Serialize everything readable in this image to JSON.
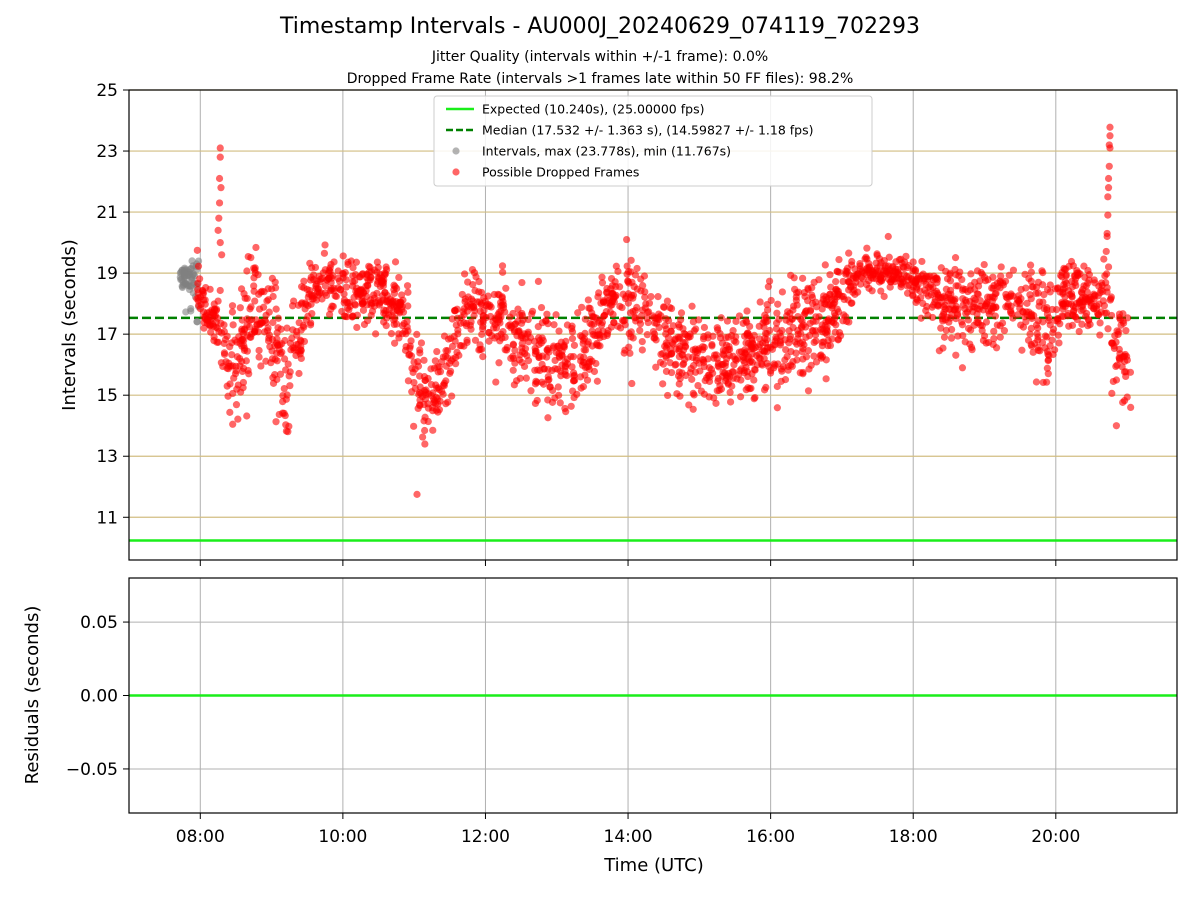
{
  "chart_data": [
    {
      "type": "scatter",
      "title": "Timestamp Intervals - AU000J_20240629_074119_702293",
      "subtitle_lines": [
        "Jitter Quality (intervals within +/-1 frame): 0.0%",
        "Dropped Frame Rate (intervals >1 frames late within 50 FF files): 98.2%"
      ],
      "xlabel": "",
      "ylabel": "Intervals (seconds)",
      "ylim": [
        9.6,
        25
      ],
      "yticks": [
        "11",
        "13",
        "15",
        "17",
        "19",
        "21",
        "23",
        "25"
      ],
      "ytick_values": [
        11,
        13,
        15,
        17,
        19,
        21,
        23,
        25
      ],
      "xlim_hours": [
        7.0,
        21.7
      ],
      "xtick_hours": [
        8,
        10,
        12,
        14,
        16,
        18,
        20
      ],
      "xticks": [
        "08:00",
        "10:00",
        "12:00",
        "14:00",
        "16:00",
        "18:00",
        "20:00"
      ],
      "grid": true,
      "legend_position": "top-center",
      "reference_lines": [
        {
          "name": "Expected (10.240s), (25.00000 fps)",
          "y": 10.24,
          "style": "solid",
          "color": "#1aee1a"
        },
        {
          "name": "Median (17.532 +/- 1.363 s), (14.59827 +/- 1.18 fps)",
          "y": 17.532,
          "style": "dashed",
          "color": "#008000"
        }
      ],
      "series": [
        {
          "name": "Intervals, max (23.778s), min (11.767s)",
          "color": "#808080",
          "time_range_hours": [
            7.72,
            7.98
          ],
          "y_range": [
            17.4,
            19.4
          ],
          "approx_count": 60
        },
        {
          "name": "Possible Dropped Frames",
          "color": "#ff0000",
          "approx_count": 2400,
          "profile_hours": [
            7.95,
            8.1,
            8.25,
            8.3,
            8.4,
            8.6,
            8.8,
            9.0,
            9.2,
            9.4,
            9.6,
            9.8,
            10.0,
            10.3,
            10.6,
            10.9,
            11.0,
            11.2,
            11.4,
            11.6,
            11.8,
            12.0,
            12.3,
            12.6,
            12.9,
            13.2,
            13.5,
            13.8,
            14.0,
            14.3,
            14.6,
            14.9,
            15.2,
            15.5,
            15.8,
            16.1,
            16.4,
            16.7,
            17.0,
            17.3,
            17.6,
            17.9,
            18.2,
            18.5,
            18.8,
            19.1,
            19.4,
            19.7,
            19.9,
            20.1,
            20.4,
            20.6,
            20.7,
            20.8,
            21.05
          ],
          "profile_median": [
            18.6,
            17.6,
            17.4,
            16.8,
            16.0,
            16.4,
            18.2,
            17.0,
            15.6,
            17.4,
            18.6,
            18.4,
            18.5,
            18.3,
            18.4,
            17.5,
            15.0,
            15.0,
            15.2,
            17.0,
            18.1,
            17.5,
            17.1,
            16.6,
            16.3,
            16.0,
            16.8,
            18.5,
            17.8,
            18.0,
            16.6,
            16.2,
            16.1,
            16.3,
            16.4,
            17.0,
            17.2,
            17.3,
            18.2,
            19.0,
            19.0,
            19.0,
            18.4,
            17.7,
            17.8,
            17.9,
            18.1,
            17.6,
            17.0,
            18.2,
            18.3,
            18.0,
            19.5,
            16.5,
            16.5
          ],
          "profile_spread": [
            0.6,
            0.5,
            0.6,
            1.4,
            1.2,
            1.4,
            1.2,
            1.5,
            1.4,
            1.0,
            0.6,
            0.8,
            0.7,
            0.7,
            0.7,
            1.0,
            1.1,
            1.0,
            1.0,
            1.0,
            0.8,
            1.1,
            1.2,
            1.2,
            1.2,
            1.2,
            1.2,
            0.7,
            1.2,
            1.1,
            1.1,
            1.0,
            1.0,
            1.0,
            1.1,
            1.2,
            1.1,
            1.2,
            1.0,
            0.5,
            0.4,
            0.4,
            0.7,
            1.0,
            1.0,
            1.0,
            0.8,
            1.2,
            1.4,
            0.8,
            0.7,
            0.7,
            1.5,
            1.1,
            1.1
          ],
          "outliers": [
            {
              "x": 8.28,
              "y": 23.1
            },
            {
              "x": 8.28,
              "y": 22.8
            },
            {
              "x": 8.27,
              "y": 22.1
            },
            {
              "x": 8.29,
              "y": 21.8
            },
            {
              "x": 8.27,
              "y": 21.3
            },
            {
              "x": 8.26,
              "y": 20.8
            },
            {
              "x": 8.25,
              "y": 20.4
            },
            {
              "x": 8.28,
              "y": 20.0
            },
            {
              "x": 8.3,
              "y": 19.6
            },
            {
              "x": 11.04,
              "y": 11.75
            },
            {
              "x": 11.15,
              "y": 13.4
            },
            {
              "x": 13.98,
              "y": 20.1
            },
            {
              "x": 17.65,
              "y": 20.2
            },
            {
              "x": 20.76,
              "y": 23.78
            },
            {
              "x": 20.76,
              "y": 23.5
            },
            {
              "x": 20.75,
              "y": 23.2
            },
            {
              "x": 20.76,
              "y": 23.1
            },
            {
              "x": 20.75,
              "y": 22.5
            },
            {
              "x": 20.74,
              "y": 22.1
            },
            {
              "x": 20.74,
              "y": 21.8
            },
            {
              "x": 20.73,
              "y": 21.5
            },
            {
              "x": 20.73,
              "y": 20.9
            },
            {
              "x": 20.72,
              "y": 20.3
            },
            {
              "x": 20.72,
              "y": 20.2
            },
            {
              "x": 20.85,
              "y": 14.0
            },
            {
              "x": 21.05,
              "y": 14.6
            }
          ]
        }
      ]
    },
    {
      "type": "line",
      "xlabel": "Time (UTC)",
      "ylabel": "Residuals (seconds)",
      "ylim": [
        -0.08,
        0.08
      ],
      "yticks": [
        "0.05",
        "0.00",
        "−0.05"
      ],
      "ytick_values": [
        0.05,
        0.0,
        -0.05
      ],
      "xlim_hours": [
        7.0,
        21.7
      ],
      "xtick_hours": [
        8,
        10,
        12,
        14,
        16,
        18,
        20
      ],
      "xticks": [
        "08:00",
        "10:00",
        "12:00",
        "14:00",
        "16:00",
        "18:00",
        "20:00"
      ],
      "grid": true,
      "series": [
        {
          "name": "",
          "color": "#1aee1a",
          "x": [
            7.0,
            21.7
          ],
          "values": [
            0.0,
            0.0
          ]
        }
      ]
    }
  ]
}
